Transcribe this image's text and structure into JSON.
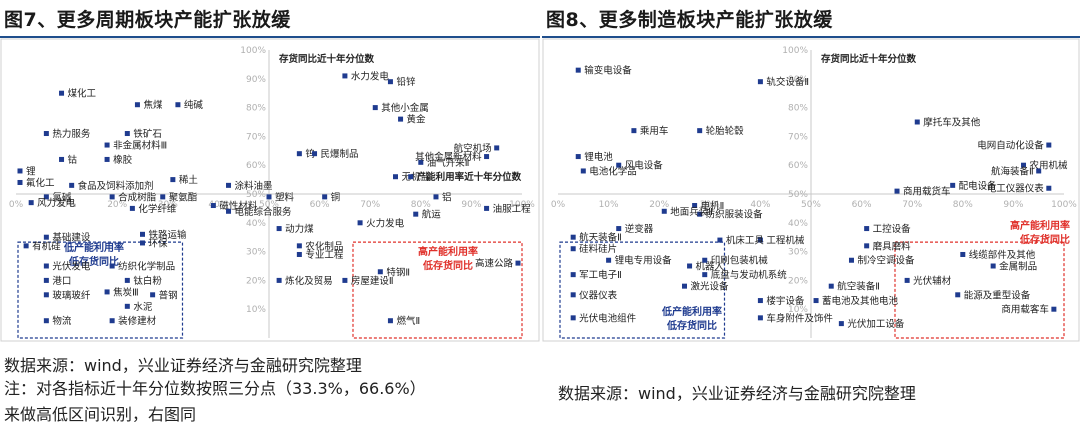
{
  "left": {
    "title": "图7、更多周期板块产能扩张放缓",
    "source": "数据来源：wind，兴业证券经济与金融研究院整理",
    "note_line1": "注：对各指标近十年分位数按照三分点（33.3%，66.6%）",
    "note_line2": "来做高低区间识别，右图同"
  },
  "right": {
    "title": "图8、更多制造板块产能扩张放缓",
    "source": "数据来源：wind，兴业证券经济与金融研究院整理"
  },
  "colors": {
    "point": "#1f3b8f",
    "low_box": "#1f3b8f",
    "high_box": "#e0302a",
    "axis": "#c8c8c8",
    "tick": "#b0b0b0"
  },
  "chart_data": [
    {
      "type": "scatter",
      "xlabel": "产能利用率近十年分位数",
      "ylabel": "存货同比近十年分位数",
      "xlim": [
        0,
        100
      ],
      "ylim": [
        0,
        100
      ],
      "x_ticks": [
        "0%",
        "10%",
        "20%",
        "30%",
        "40%",
        "50%",
        "60%",
        "70%",
        "80%",
        "90%",
        "100%"
      ],
      "y_ticks": [
        "10%",
        "20%",
        "30%",
        "40%",
        "50%",
        "60%",
        "70%",
        "80%",
        "90%",
        "100%"
      ],
      "box_low": {
        "label1": "低产能利用率",
        "label2": "低存货同比",
        "x": [
          0,
          33.3
        ],
        "y": [
          0,
          33.3
        ]
      },
      "box_high": {
        "label1": "高产能利用率",
        "label2": "低存货同比",
        "x": [
          66.6,
          100
        ],
        "y": [
          0,
          33.3
        ]
      },
      "points": [
        {
          "label": "煤化工",
          "x": 9,
          "y": 85
        },
        {
          "label": "焦煤",
          "x": 24,
          "y": 81
        },
        {
          "label": "纯碱",
          "x": 32,
          "y": 81
        },
        {
          "label": "热力服务",
          "x": 6,
          "y": 71
        },
        {
          "label": "铁矿石",
          "x": 22,
          "y": 71
        },
        {
          "label": "非金属材料Ⅲ",
          "x": 18,
          "y": 67
        },
        {
          "label": "钴",
          "x": 9,
          "y": 62
        },
        {
          "label": "橡胶",
          "x": 18,
          "y": 62
        },
        {
          "label": "锂",
          "x": -1,
          "y": 58
        },
        {
          "label": "稀土",
          "x": 31,
          "y": 55
        },
        {
          "label": "氟化工",
          "x": -1,
          "y": 54
        },
        {
          "label": "食品及饲料添加剂",
          "x": 11,
          "y": 53
        },
        {
          "label": "涂料油墨",
          "x": 42,
          "y": 53
        },
        {
          "label": "氯碱",
          "x": 6,
          "y": 49
        },
        {
          "label": "合成树脂",
          "x": 19,
          "y": 49
        },
        {
          "label": "聚氨酯",
          "x": 29,
          "y": 49
        },
        {
          "label": "塑料",
          "x": 50,
          "y": 49
        },
        {
          "label": "风力发电",
          "x": 3,
          "y": 47
        },
        {
          "label": "化学纤维",
          "x": 23,
          "y": 45
        },
        {
          "label": "磁性材料",
          "x": 39,
          "y": 46
        },
        {
          "label": "电能综合服务",
          "x": 42,
          "y": 44
        },
        {
          "label": "水力发电",
          "x": 65,
          "y": 91
        },
        {
          "label": "铅锌",
          "x": 74,
          "y": 89
        },
        {
          "label": "其他小金属",
          "x": 71,
          "y": 80
        },
        {
          "label": "黄金",
          "x": 76,
          "y": 76
        },
        {
          "label": "钨",
          "x": 56,
          "y": 64
        },
        {
          "label": "民爆制品",
          "x": 59,
          "y": 64
        },
        {
          "label": "油气开采Ⅱ",
          "x": 80,
          "y": 61
        },
        {
          "label": "航空机场",
          "x": 95,
          "y": 66
        },
        {
          "label": "其他金属新材料",
          "x": 93,
          "y": 63
        },
        {
          "label": "无机盐",
          "x": 75,
          "y": 56
        },
        {
          "label": "产能利用率近十年分位数",
          "x": 78,
          "y": 56
        },
        {
          "label": "铝",
          "x": 83,
          "y": 49
        },
        {
          "label": "铜",
          "x": 61,
          "y": 49
        },
        {
          "label": "航运",
          "x": 79,
          "y": 43
        },
        {
          "label": "油服工程",
          "x": 93,
          "y": 45
        },
        {
          "label": "火力发电",
          "x": 68,
          "y": 40
        },
        {
          "label": "动力煤",
          "x": 52,
          "y": 38
        },
        {
          "label": "农化制品",
          "x": 56,
          "y": 32
        },
        {
          "label": "专业工程",
          "x": 56,
          "y": 29
        },
        {
          "label": "高速公路",
          "x": 100,
          "y": 26
        },
        {
          "label": "特钢Ⅱ",
          "x": 72,
          "y": 23
        },
        {
          "label": "炼化及贸易",
          "x": 52,
          "y": 20
        },
        {
          "label": "房屋建设Ⅱ",
          "x": 65,
          "y": 20
        },
        {
          "label": "燃气Ⅱ",
          "x": 74,
          "y": 6
        },
        {
          "label": "基础建设",
          "x": 6,
          "y": 35
        },
        {
          "label": "铁路运输",
          "x": 25,
          "y": 36
        },
        {
          "label": "有机硅",
          "x": 2,
          "y": 32
        },
        {
          "label": "环保",
          "x": 25,
          "y": 33
        },
        {
          "label": "光伏发电",
          "x": 6,
          "y": 25
        },
        {
          "label": "纺织化学制品",
          "x": 19,
          "y": 25
        },
        {
          "label": "港口",
          "x": 6,
          "y": 20
        },
        {
          "label": "钛白粉",
          "x": 22,
          "y": 20
        },
        {
          "label": "玻璃玻纤",
          "x": 6,
          "y": 15
        },
        {
          "label": "焦炭Ⅲ",
          "x": 18,
          "y": 16
        },
        {
          "label": "普钢",
          "x": 27,
          "y": 15
        },
        {
          "label": "水泥",
          "x": 22,
          "y": 11
        },
        {
          "label": "物流",
          "x": 6,
          "y": 6
        },
        {
          "label": "装修建材",
          "x": 19,
          "y": 6
        }
      ]
    },
    {
      "type": "scatter",
      "xlabel": "",
      "ylabel": "存货同比近十年分位数",
      "xlim": [
        0,
        100
      ],
      "ylim": [
        0,
        100
      ],
      "x_ticks": [
        "0%",
        "10%",
        "20%",
        "30%",
        "40%",
        "50%",
        "60%",
        "70%",
        "80%",
        "90%",
        "100%"
      ],
      "y_ticks": [
        "10%",
        "20%",
        "30%",
        "40%",
        "50%",
        "60%",
        "70%",
        "80%",
        "90%",
        "100%"
      ],
      "box_low": {
        "label1": "低产能利用率",
        "label2": "低存货同比",
        "x": [
          0,
          33.3
        ],
        "y": [
          0,
          33.3
        ]
      },
      "box_high": {
        "label1": "高产能利用率",
        "label2": "低存货同比",
        "x": [
          66.6,
          100
        ],
        "y": [
          0,
          33.3
        ]
      },
      "points": [
        {
          "label": "输变电设备",
          "x": 4,
          "y": 93
        },
        {
          "label": "轨交设备Ⅱ",
          "x": 40,
          "y": 89
        },
        {
          "label": "乘用车",
          "x": 15,
          "y": 72
        },
        {
          "label": "轮胎轮毂",
          "x": 28,
          "y": 72
        },
        {
          "label": "摩托车及其他",
          "x": 71,
          "y": 75
        },
        {
          "label": "锂电池",
          "x": 4,
          "y": 63
        },
        {
          "label": "电网自动化设备",
          "x": 97,
          "y": 67
        },
        {
          "label": "风电设备",
          "x": 12,
          "y": 60
        },
        {
          "label": "电池化学品",
          "x": 5,
          "y": 58
        },
        {
          "label": "农用机械",
          "x": 92,
          "y": 60
        },
        {
          "label": "航海装备Ⅱ",
          "x": 95,
          "y": 58
        },
        {
          "label": "配电设备",
          "x": 78,
          "y": 53
        },
        {
          "label": "商用载货车",
          "x": 67,
          "y": 51
        },
        {
          "label": "电工仪器仪表",
          "x": 97,
          "y": 52
        },
        {
          "label": "电机Ⅱ",
          "x": 27,
          "y": 46
        },
        {
          "label": "纺织服装设备",
          "x": 28,
          "y": 43
        },
        {
          "label": "地面兵装Ⅱ",
          "x": 21,
          "y": 44
        },
        {
          "label": "工控设备",
          "x": 61,
          "y": 38
        },
        {
          "label": "逆变器",
          "x": 12,
          "y": 38
        },
        {
          "label": "航天装备Ⅱ",
          "x": 3,
          "y": 35
        },
        {
          "label": "工程机械",
          "x": 40,
          "y": 34
        },
        {
          "label": "机床工具",
          "x": 32,
          "y": 34
        },
        {
          "label": "磨具磨料",
          "x": 61,
          "y": 32
        },
        {
          "label": "硅料硅片",
          "x": 3,
          "y": 31
        },
        {
          "label": "锂电专用设备",
          "x": 10,
          "y": 27
        },
        {
          "label": "机器人",
          "x": 26,
          "y": 25
        },
        {
          "label": "印刷包装机械",
          "x": 29,
          "y": 27
        },
        {
          "label": "制冷空调设备",
          "x": 58,
          "y": 27
        },
        {
          "label": "线缆部件及其他",
          "x": 80,
          "y": 29
        },
        {
          "label": "军工电子Ⅱ",
          "x": 3,
          "y": 22
        },
        {
          "label": "底盘与发动机系统",
          "x": 29,
          "y": 22
        },
        {
          "label": "金属制品",
          "x": 86,
          "y": 25
        },
        {
          "label": "光伏辅材",
          "x": 69,
          "y": 20
        },
        {
          "label": "激光设备",
          "x": 25,
          "y": 18
        },
        {
          "label": "航空装备Ⅱ",
          "x": 54,
          "y": 18
        },
        {
          "label": "仪器仪表",
          "x": 3,
          "y": 15
        },
        {
          "label": "能源及重型设备",
          "x": 79,
          "y": 15
        },
        {
          "label": "楼宇设备",
          "x": 40,
          "y": 13
        },
        {
          "label": "蓄电池及其他电池",
          "x": 51,
          "y": 13
        },
        {
          "label": "商用载客车",
          "x": 98,
          "y": 10
        },
        {
          "label": "光伏电池组件",
          "x": 3,
          "y": 7
        },
        {
          "label": "车身附件及饰件",
          "x": 40,
          "y": 7
        },
        {
          "label": "光伏加工设备",
          "x": 56,
          "y": 5
        }
      ]
    }
  ]
}
